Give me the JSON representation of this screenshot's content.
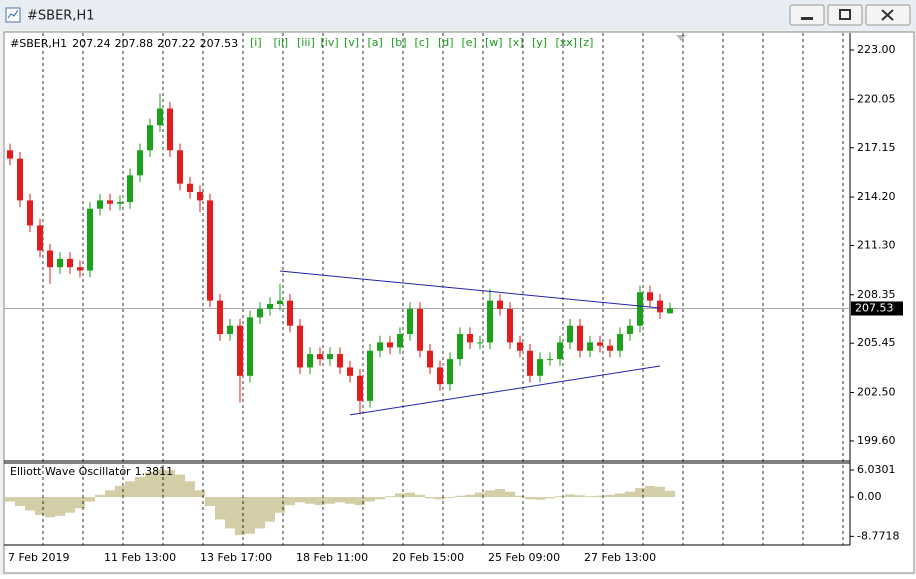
{
  "window_title": "#SBER,H1",
  "chart_data": [
    {
      "type": "candlestick",
      "title": "#SBER,H1",
      "open": [
        217,
        216.5,
        214,
        212.5,
        211,
        210,
        210.5,
        210,
        209.8,
        213.5,
        214,
        213.8,
        213.9,
        215.5,
        217,
        218.5,
        219.5,
        217,
        215,
        214.5,
        214,
        208,
        206,
        206.5,
        203.5,
        207,
        207.5,
        207.8,
        208,
        206.5,
        204,
        204.8,
        204.5,
        204.8,
        204,
        203.5,
        202,
        205,
        205.5,
        205.2,
        206,
        207.5,
        205,
        204,
        203,
        204.5,
        206,
        205.5,
        205.5,
        208,
        207.5,
        205.5,
        205,
        203.5,
        204.5,
        204.5,
        205.5,
        206.5,
        205,
        205.5,
        205.3,
        205,
        206,
        206.5,
        208.5,
        208,
        207.24
      ],
      "high": [
        217.4,
        216.9,
        214.4,
        212.9,
        211.4,
        210.9,
        210.9,
        210.4,
        213.9,
        214.4,
        214.4,
        214.3,
        215.9,
        217.4,
        218.9,
        220.4,
        219.9,
        217.4,
        215.4,
        214.9,
        214.4,
        208.4,
        206.9,
        206.9,
        207.4,
        207.9,
        208.2,
        209.0,
        208.4,
        206.9,
        205.2,
        205.2,
        205.2,
        205.2,
        204.4,
        203.9,
        205.4,
        205.9,
        205.9,
        206.4,
        207.9,
        207.9,
        205.4,
        204.4,
        204.9,
        206.4,
        206.4,
        205.9,
        208.7,
        208.4,
        207.9,
        205.9,
        205.4,
        204.9,
        204.9,
        205.9,
        206.9,
        206.9,
        205.9,
        205.9,
        205.7,
        206.4,
        206.9,
        208.9,
        208.9,
        208.4,
        207.88
      ],
      "low": [
        216.1,
        213.6,
        212.1,
        210.6,
        209.0,
        209.6,
        209.6,
        209.4,
        209.4,
        213.1,
        213.4,
        213.4,
        213.5,
        215.1,
        216.6,
        218.1,
        216.6,
        214.6,
        214.1,
        213.3,
        207.6,
        205.6,
        205.6,
        201.9,
        203.1,
        206.6,
        207.1,
        207.4,
        206.1,
        203.6,
        203.6,
        204.1,
        204.1,
        203.6,
        203.1,
        201.2,
        201.6,
        204.6,
        204.8,
        204.8,
        205.6,
        204.6,
        203.6,
        202.6,
        202.6,
        204.1,
        205.1,
        205.1,
        205.1,
        207.1,
        205.1,
        204.6,
        203.1,
        203.1,
        204.1,
        204.1,
        205.1,
        204.6,
        204.6,
        204.9,
        204.6,
        204.6,
        205.6,
        206.1,
        207.6,
        206.9,
        207.22
      ],
      "close": [
        216.5,
        214,
        212.5,
        211,
        210,
        210.5,
        210,
        209.8,
        213.5,
        214,
        213.8,
        213.9,
        215.5,
        217,
        218.5,
        219.5,
        217,
        215,
        214.5,
        214,
        208,
        206,
        206.5,
        203.5,
        207,
        207.5,
        207.8,
        208,
        206.5,
        204,
        204.8,
        204.5,
        204.8,
        204,
        203.5,
        202,
        205,
        205.5,
        205.2,
        206,
        207.5,
        205,
        204,
        203,
        204.5,
        206,
        205.5,
        205.5,
        208,
        207.5,
        205.5,
        205,
        203.5,
        204.5,
        204.5,
        205.5,
        206.5,
        205,
        205.5,
        205.3,
        205,
        206,
        206.5,
        208.5,
        208,
        207.3,
        207.53
      ],
      "up_color": "#1aa21a",
      "down_color": "#e11d1d",
      "ylim": [
        198.46,
        224.02
      ],
      "yticks": [
        {
          "value": 199.6,
          "label": "199.60"
        },
        {
          "value": 202.5,
          "label": "202.50"
        },
        205.45,
        208.35,
        {
          "value": 211.3,
          "label": "211.30"
        },
        {
          "value": 214.2,
          "label": "214.20"
        },
        217.15,
        220.05,
        {
          "value": 223,
          "label": "223.00"
        }
      ],
      "x_labels": [
        "7 Feb 2019",
        "11 Feb 13:00",
        "13 Feb 17:00",
        "18 Feb 11:00",
        "20 Feb 15:00",
        "25 Feb 09:00",
        "27 Feb 13:00"
      ],
      "annotations": [
        "[i]",
        "[ii]",
        "[iii]",
        "[iv]",
        "[v]",
        "[a]",
        "[b]",
        "[c]",
        "[d]",
        "[e]",
        "[w]",
        "[x]",
        "[y]",
        "[xx]",
        "[z]"
      ],
      "annotation_color": "#1a9a1a",
      "trendlines": [
        {
          "x": [
            27,
            65
          ],
          "y": [
            209.77,
            207.56
          ]
        },
        {
          "x": [
            34,
            65
          ],
          "y": [
            201.16,
            204.09
          ]
        }
      ],
      "trendline_color": "#2222aa"
    },
    {
      "type": "bar",
      "title": "Elliott Wave Oscillator",
      "values": [
        -1,
        -2,
        -3,
        -4,
        -4.5,
        -4.2,
        -3.5,
        -2.5,
        -1,
        0.5,
        1.5,
        2.5,
        3.5,
        4.5,
        5.5,
        6.2,
        6,
        5,
        3.5,
        1.5,
        -2,
        -5,
        -7,
        -8.5,
        -8.2,
        -7,
        -5.5,
        -3.5,
        -1.8,
        -1.2,
        -1.5,
        -1.8,
        -1.5,
        -1.2,
        -1.5,
        -1.8,
        -1,
        -0.5,
        0.2,
        0.8,
        1,
        0.5,
        -0.3,
        -0.5,
        -0.2,
        0.3,
        0.5,
        1,
        1.5,
        1.8,
        1.2,
        0.3,
        -0.5,
        -0.6,
        -0.3,
        0.2,
        0.6,
        0.4,
        0.2,
        0.3,
        0.5,
        0.8,
        1.2,
        2,
        2.5,
        2.3,
        1.3811
      ],
      "color": "#b8ad6e",
      "ylim": [
        -10.7,
        7.6
      ],
      "yticks": [
        -8.7718,
        {
          "value": 0,
          "label": "0.00"
        },
        6.0301
      ]
    }
  ]
}
